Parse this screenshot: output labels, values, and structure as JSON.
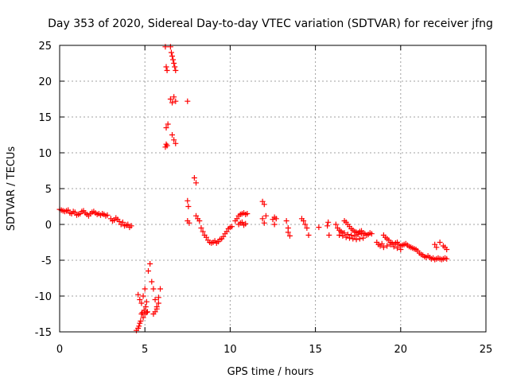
{
  "chart_data": {
    "type": "scatter",
    "title": "Day 353 of 2020, Sidereal Day-to-day VTEC variation (SDTVAR) for receiver jfng",
    "xlabel": "GPS time / hours",
    "ylabel": "SDTVAR / TECUs",
    "xlim": [
      0,
      25
    ],
    "ylim": [
      -15,
      25
    ],
    "xticks": [
      0,
      5,
      10,
      15,
      20,
      25
    ],
    "yticks": [
      -15,
      -10,
      -5,
      0,
      5,
      10,
      15,
      20,
      25
    ],
    "xtick_labels": [
      "0",
      "5",
      "10",
      "15",
      "20",
      "25"
    ],
    "ytick_labels": [
      "-15",
      "-10",
      "-5",
      "0",
      "5",
      "10",
      "15",
      "20",
      "25"
    ],
    "grid": true,
    "marker": "plus",
    "series": [
      {
        "name": "SDTVAR",
        "color": "#ff0000",
        "x": [
          0.0,
          0.1,
          0.2,
          0.3,
          0.4,
          0.5,
          0.6,
          0.7,
          0.8,
          0.9,
          1.0,
          1.1,
          1.2,
          1.3,
          1.4,
          1.5,
          1.6,
          1.7,
          1.8,
          1.9,
          2.0,
          2.1,
          2.2,
          2.3,
          2.4,
          2.5,
          2.6,
          2.7,
          2.8,
          3.0,
          3.1,
          3.2,
          3.3,
          3.4,
          3.5,
          3.6,
          3.7,
          3.8,
          3.9,
          4.0,
          4.1,
          4.2,
          4.5,
          4.6,
          4.65,
          4.7,
          4.75,
          4.8,
          4.85,
          4.9,
          4.95,
          5.0,
          5.05,
          5.1,
          5.15,
          4.6,
          4.7,
          4.8,
          4.9,
          5.0,
          5.1,
          5.2,
          5.3,
          5.4,
          5.5,
          5.6,
          5.7,
          5.8,
          5.5,
          5.6,
          5.7,
          5.8,
          5.9,
          6.2,
          6.25,
          6.3,
          6.35,
          6.25,
          6.3,
          6.2,
          6.25,
          6.5,
          6.55,
          6.6,
          6.65,
          6.7,
          6.75,
          6.8,
          6.5,
          6.6,
          6.7,
          6.8,
          7.5,
          6.6,
          6.7,
          6.8,
          7.9,
          8.0,
          7.5,
          7.55,
          7.5,
          7.6,
          8.0,
          8.1,
          8.2,
          8.3,
          8.4,
          8.5,
          8.6,
          8.7,
          8.8,
          8.9,
          9.0,
          9.1,
          9.2,
          9.3,
          9.4,
          9.5,
          9.6,
          9.7,
          9.8,
          9.9,
          10.0,
          10.1,
          10.3,
          10.4,
          10.5,
          10.6,
          10.7,
          10.8,
          10.9,
          11.0,
          10.5,
          10.6,
          10.7,
          10.8,
          10.9,
          11.9,
          12.0,
          12.1,
          11.9,
          12.0,
          12.5,
          12.6,
          12.7,
          12.6,
          13.3,
          13.4,
          13.4,
          13.5,
          14.2,
          14.3,
          14.4,
          14.5,
          14.6,
          15.2,
          15.7,
          15.8,
          15.75,
          16.2,
          16.3,
          16.4,
          16.5,
          16.6,
          16.7,
          16.8,
          16.9,
          17.0,
          17.1,
          17.2,
          17.3,
          17.4,
          17.5,
          17.6,
          17.7,
          17.8,
          17.9,
          18.0,
          18.1,
          18.2,
          18.3,
          16.4,
          16.6,
          16.8,
          17.0,
          17.2,
          17.4,
          17.6,
          17.8,
          16.5,
          16.7,
          16.9,
          17.1,
          17.3,
          17.5,
          17.7,
          18.6,
          18.7,
          18.8,
          18.9,
          19.0,
          19.1,
          19.2,
          19.3,
          19.4,
          19.5,
          19.6,
          19.7,
          19.8,
          19.9,
          20.0,
          20.1,
          20.2,
          20.3,
          20.4,
          20.5,
          20.6,
          20.7,
          20.8,
          19.0,
          19.2,
          19.4,
          19.6,
          19.8,
          20.0,
          20.9,
          21.0,
          21.1,
          21.2,
          21.3,
          21.4,
          21.5,
          21.6,
          21.7,
          21.8,
          21.9,
          22.0,
          22.1,
          22.2,
          22.3,
          22.4,
          22.5,
          22.6,
          22.7,
          22.0,
          22.1,
          22.3,
          22.5,
          22.6,
          22.7
        ],
        "y": [
          2.1,
          2.0,
          1.9,
          1.8,
          1.9,
          2.0,
          1.6,
          1.5,
          1.8,
          1.7,
          1.3,
          1.4,
          1.5,
          1.8,
          1.9,
          1.6,
          1.4,
          1.2,
          1.5,
          1.7,
          1.8,
          1.6,
          1.4,
          1.5,
          1.3,
          1.5,
          1.4,
          1.2,
          1.3,
          0.8,
          0.5,
          0.6,
          0.9,
          0.7,
          0.4,
          0.0,
          0.3,
          -0.2,
          -0.1,
          0.0,
          -0.4,
          -0.2,
          -14.8,
          -14.5,
          -14.2,
          -13.8,
          -13.5,
          -12.5,
          -12.3,
          -13.0,
          -12.0,
          -12.5,
          -11.5,
          -12.3,
          -12.2,
          -9.8,
          -10.5,
          -11.0,
          -10.0,
          -9.0,
          -10.8,
          -6.5,
          -5.5,
          -8.0,
          -9.0,
          -10.5,
          -11.5,
          -11.0,
          -12.5,
          -12.2,
          -11.8,
          -10.2,
          -9.0,
          24.8,
          22.0,
          21.5,
          14.0,
          13.5,
          11.0,
          10.8,
          11.2,
          24.8,
          24.0,
          23.5,
          23.0,
          22.5,
          22.0,
          21.5,
          17.5,
          17.0,
          17.8,
          17.2,
          17.2,
          12.5,
          11.8,
          11.3,
          6.5,
          5.8,
          3.3,
          2.5,
          0.5,
          0.2,
          1.2,
          0.8,
          0.5,
          -0.5,
          -1.0,
          -1.5,
          -1.8,
          -2.2,
          -2.5,
          -2.6,
          -2.5,
          -2.3,
          -2.6,
          -2.4,
          -2.1,
          -2.0,
          -1.7,
          -1.3,
          -1.0,
          -0.6,
          -0.4,
          -0.3,
          0.5,
          0.8,
          1.2,
          1.4,
          1.5,
          1.6,
          1.4,
          1.5,
          0.0,
          0.2,
          0.3,
          -0.1,
          0.1,
          3.2,
          2.8,
          1.2,
          0.8,
          0.2,
          0.7,
          1.0,
          0.8,
          0.0,
          0.5,
          -0.5,
          -1.1,
          -1.6,
          0.8,
          0.5,
          0.0,
          -0.5,
          -1.5,
          -0.4,
          -0.2,
          -1.5,
          0.3,
          0.0,
          -0.5,
          -0.8,
          -1.0,
          -1.2,
          0.5,
          0.3,
          0.0,
          -0.3,
          -0.6,
          -0.8,
          -1.0,
          -1.1,
          -1.2,
          -1.0,
          -0.9,
          -1.2,
          -1.3,
          -1.5,
          -1.4,
          -1.2,
          -1.3,
          -1.5,
          -1.6,
          -1.8,
          -1.9,
          -2.0,
          -2.1,
          -2.0,
          -1.9,
          -1.0,
          -1.2,
          -1.4,
          -1.5,
          -1.6,
          -1.4,
          -1.3,
          -2.5,
          -2.8,
          -3.0,
          -2.7,
          -1.5,
          -1.8,
          -2.0,
          -2.2,
          -2.5,
          -2.6,
          -2.8,
          -2.6,
          -2.5,
          -2.8,
          -3.0,
          -2.9,
          -2.8,
          -2.7,
          -2.9,
          -3.1,
          -3.2,
          -3.3,
          -3.4,
          -3.2,
          -3.0,
          -2.8,
          -3.1,
          -3.3,
          -3.5,
          -3.5,
          -3.7,
          -4.0,
          -4.2,
          -4.3,
          -4.5,
          -4.6,
          -4.4,
          -4.6,
          -4.8,
          -4.7,
          -4.9,
          -4.8,
          -4.7,
          -4.8,
          -4.9,
          -4.8,
          -4.7,
          -4.8,
          -2.8,
          -3.2,
          -2.5,
          -3.0,
          -3.2,
          -3.5
        ]
      }
    ]
  }
}
